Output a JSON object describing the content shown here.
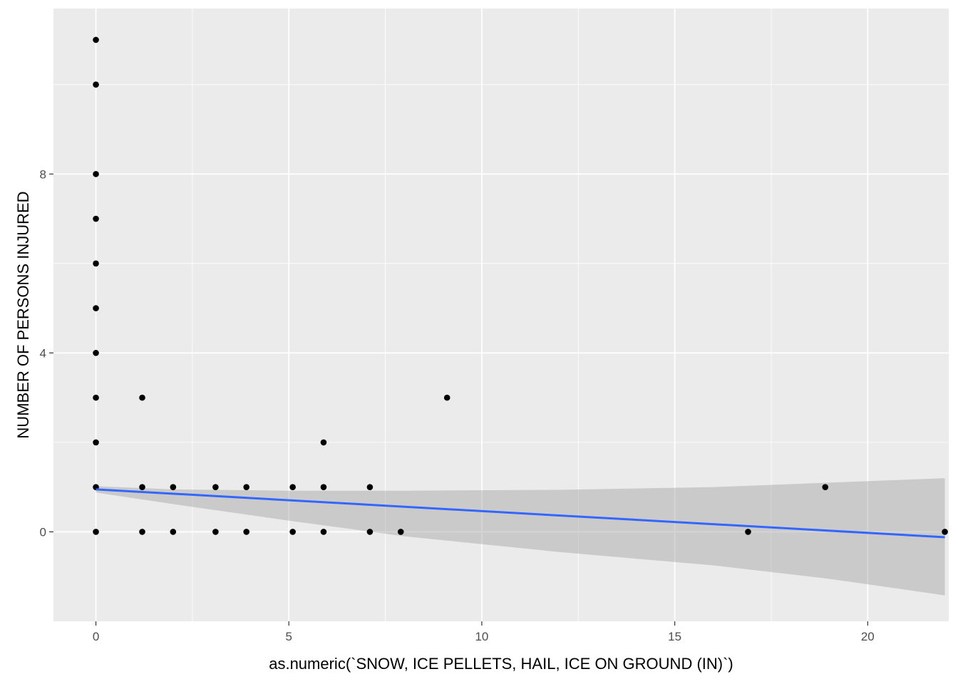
{
  "chart_data": {
    "type": "scatter",
    "title": "",
    "xlabel": "as.numeric(`SNOW, ICE PELLETS, HAIL, ICE ON GROUND (IN)`)",
    "ylabel": "NUMBER OF PERSONS INJURED",
    "xlim": [
      -1.1,
      22.1
    ],
    "ylim": [
      -2.0,
      11.7
    ],
    "x_ticks": [
      0,
      5,
      10,
      15,
      20
    ],
    "y_ticks": [
      0,
      4,
      8
    ],
    "x_tick_labels": [
      "0",
      "5",
      "10",
      "15",
      "20"
    ],
    "y_tick_labels": [
      "0",
      "4",
      "8"
    ],
    "grid": true,
    "background": "#ebebeb",
    "point_color": "#000000",
    "points": [
      {
        "x": 0,
        "y": 11
      },
      {
        "x": 0,
        "y": 10
      },
      {
        "x": 0,
        "y": 8
      },
      {
        "x": 0,
        "y": 7
      },
      {
        "x": 0,
        "y": 6
      },
      {
        "x": 0,
        "y": 5
      },
      {
        "x": 0,
        "y": 4
      },
      {
        "x": 0,
        "y": 3
      },
      {
        "x": 0,
        "y": 2
      },
      {
        "x": 0,
        "y": 1
      },
      {
        "x": 0,
        "y": 0
      },
      {
        "x": 1.2,
        "y": 3
      },
      {
        "x": 1.2,
        "y": 1
      },
      {
        "x": 1.2,
        "y": 0
      },
      {
        "x": 2.0,
        "y": 1
      },
      {
        "x": 2.0,
        "y": 0
      },
      {
        "x": 3.1,
        "y": 1
      },
      {
        "x": 3.1,
        "y": 0
      },
      {
        "x": 3.9,
        "y": 1
      },
      {
        "x": 3.9,
        "y": 0
      },
      {
        "x": 5.1,
        "y": 1
      },
      {
        "x": 5.1,
        "y": 0
      },
      {
        "x": 5.9,
        "y": 2
      },
      {
        "x": 5.9,
        "y": 1
      },
      {
        "x": 5.9,
        "y": 0
      },
      {
        "x": 7.1,
        "y": 1
      },
      {
        "x": 7.1,
        "y": 0
      },
      {
        "x": 7.9,
        "y": 0
      },
      {
        "x": 9.1,
        "y": 3
      },
      {
        "x": 16.9,
        "y": 0
      },
      {
        "x": 18.9,
        "y": 1
      },
      {
        "x": 22.0,
        "y": 0
      }
    ],
    "smooth": {
      "method": "linear",
      "color": "#3366ff",
      "band_color": "#999999",
      "fit": [
        {
          "x": 0,
          "y": 0.95
        },
        {
          "x": 22.0,
          "y": -0.12
        }
      ],
      "band": [
        {
          "x": 0,
          "lower": 0.88,
          "upper": 1.02
        },
        {
          "x": 2.0,
          "lower": 0.62,
          "upper": 0.95
        },
        {
          "x": 5.0,
          "lower": 0.25,
          "upper": 0.92
        },
        {
          "x": 8.0,
          "lower": -0.1,
          "upper": 0.92
        },
        {
          "x": 12.0,
          "lower": -0.45,
          "upper": 0.94
        },
        {
          "x": 16.0,
          "lower": -0.75,
          "upper": 1.0
        },
        {
          "x": 19.0,
          "lower": -1.05,
          "upper": 1.1
        },
        {
          "x": 22.0,
          "lower": -1.42,
          "upper": 1.2
        }
      ]
    }
  }
}
